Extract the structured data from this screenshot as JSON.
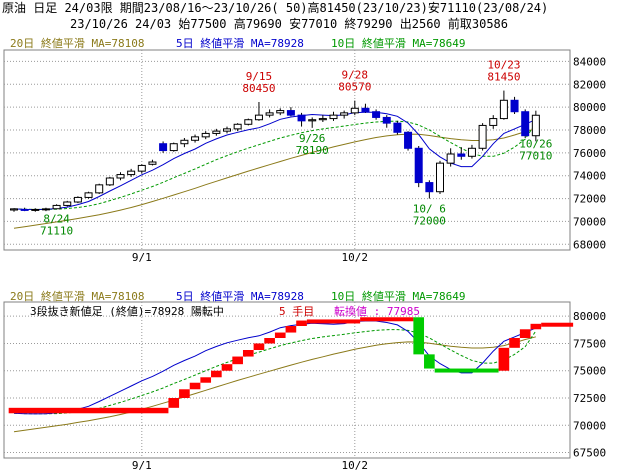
{
  "header": {
    "line1": "原油 日足 24/03限 期間23/08/16～23/10/26( 50)高81450(23/10/23)安71110(23/08/24)",
    "line2": "23/10/26 24/03 始77500 高79690 安77010 終79290 出2560 前取30586"
  },
  "colors": {
    "ma20": "#8b7a1a",
    "ma5": "#0000cc",
    "ma10": "#009900",
    "up_fill": "#ffffff",
    "down_fill": "#0000cc",
    "brick_up": "#ff0000",
    "brick_down": "#00cc00",
    "annotation_high": "#cc0000",
    "annotation_low": "#008800",
    "switch_text": "#cc00cc"
  },
  "chart_data": [
    {
      "type": "candlestick",
      "legend": {
        "ma20": "20日 終値平滑 MA=78108",
        "ma5": "5日 終値平滑 MA=78928",
        "ma10": "10日 終値平滑 MA=78649"
      },
      "y_ticks": [
        84000,
        82000,
        80000,
        78000,
        76000,
        74000,
        72000,
        70000,
        68000
      ],
      "ylim": [
        67500,
        85000
      ],
      "x_ticks": [
        {
          "label": "9/1",
          "index": 12
        },
        {
          "label": "10/2",
          "index": 32
        }
      ],
      "n": 50,
      "candles": [
        [
          71000,
          71150,
          70850,
          71100
        ],
        [
          71050,
          71200,
          70900,
          71000
        ],
        [
          71000,
          71150,
          70850,
          71050
        ],
        [
          71050,
          71200,
          70900,
          71100
        ],
        [
          71110,
          71500,
          71110,
          71400
        ],
        [
          71400,
          71800,
          71300,
          71700
        ],
        [
          71700,
          72200,
          71600,
          72100
        ],
        [
          72100,
          72600,
          72000,
          72500
        ],
        [
          72500,
          73300,
          72400,
          73200
        ],
        [
          73200,
          73900,
          73100,
          73800
        ],
        [
          73800,
          74300,
          73600,
          74100
        ],
        [
          74100,
          74600,
          73900,
          74400
        ],
        [
          74400,
          75000,
          74200,
          74900
        ],
        [
          75000,
          75400,
          74900,
          75200
        ],
        [
          76800,
          77000,
          76000,
          76200
        ],
        [
          76200,
          76900,
          76100,
          76800
        ],
        [
          76800,
          77300,
          76500,
          77100
        ],
        [
          77100,
          77600,
          76900,
          77400
        ],
        [
          77400,
          77900,
          77200,
          77700
        ],
        [
          77700,
          78100,
          77500,
          77900
        ],
        [
          77900,
          78300,
          77700,
          78100
        ],
        [
          78100,
          78600,
          77900,
          78500
        ],
        [
          78500,
          79000,
          78400,
          78900
        ],
        [
          78900,
          80450,
          78800,
          79300
        ],
        [
          79300,
          79800,
          79100,
          79500
        ],
        [
          79500,
          79900,
          79300,
          79700
        ],
        [
          79700,
          80000,
          79200,
          79300
        ],
        [
          79300,
          79500,
          78300,
          78800
        ],
        [
          78800,
          79100,
          78190,
          78900
        ],
        [
          78900,
          79300,
          78700,
          79000
        ],
        [
          79000,
          79600,
          78800,
          79300
        ],
        [
          79300,
          79700,
          79000,
          79500
        ],
        [
          79500,
          80570,
          79300,
          79900
        ],
        [
          79900,
          80300,
          79500,
          79600
        ],
        [
          79600,
          79800,
          78900,
          79100
        ],
        [
          79100,
          79300,
          78200,
          78600
        ],
        [
          78600,
          78800,
          77600,
          77800
        ],
        [
          77800,
          77900,
          76200,
          76400
        ],
        [
          76400,
          76600,
          73000,
          73400
        ],
        [
          73400,
          73600,
          72000,
          72600
        ],
        [
          72600,
          75300,
          72400,
          75100
        ],
        [
          75100,
          76400,
          74800,
          75900
        ],
        [
          75900,
          76500,
          75400,
          75700
        ],
        [
          75700,
          76700,
          75500,
          76400
        ],
        [
          76400,
          78600,
          76200,
          78400
        ],
        [
          78400,
          79300,
          78100,
          79000
        ],
        [
          79000,
          81450,
          78900,
          80600
        ],
        [
          80600,
          80900,
          79400,
          79600
        ],
        [
          79600,
          79800,
          77300,
          77500
        ],
        [
          77500,
          79690,
          77010,
          79290
        ]
      ],
      "ma5": [
        71100,
        71050,
        71040,
        71050,
        71130,
        71250,
        71470,
        71740,
        72180,
        72660,
        73120,
        73600,
        74080,
        74480,
        74960,
        75500,
        75940,
        76340,
        76840,
        77220,
        77560,
        77800,
        78020,
        78200,
        78540,
        78940,
        79140,
        79260,
        79360,
        79300,
        79260,
        79320,
        79520,
        79560,
        79560,
        79420,
        79200,
        78600,
        77600,
        76350,
        75650,
        75100,
        74800,
        74800,
        75700,
        76800,
        77700,
        78100,
        78500,
        78930
      ],
      "ma10": [
        71100,
        71070,
        71050,
        71050,
        71070,
        71130,
        71220,
        71350,
        71550,
        71820,
        72100,
        72410,
        72730,
        73060,
        73420,
        73830,
        74200,
        74600,
        75000,
        75400,
        75760,
        76100,
        76420,
        76710,
        77010,
        77300,
        77540,
        77760,
        77950,
        78100,
        78220,
        78340,
        78480,
        78600,
        78700,
        78760,
        78770,
        78700,
        78440,
        78000,
        77450,
        76900,
        76400,
        75950,
        75700,
        75700,
        75970,
        76500,
        77200,
        78650
      ],
      "ma20": [
        69400,
        69540,
        69680,
        69820,
        69960,
        70100,
        70260,
        70420,
        70590,
        70780,
        70990,
        71220,
        71470,
        71740,
        72020,
        72310,
        72600,
        72900,
        73210,
        73510,
        73810,
        74110,
        74400,
        74680,
        74960,
        75240,
        75520,
        75780,
        76040,
        76280,
        76520,
        76740,
        76960,
        77160,
        77340,
        77480,
        77580,
        77640,
        77620,
        77520,
        77380,
        77250,
        77150,
        77080,
        77080,
        77150,
        77300,
        77560,
        77860,
        78110
      ],
      "annotations": [
        {
          "date": "9/15",
          "value": "80450",
          "kind": "high",
          "index": 23,
          "price": 80450
        },
        {
          "date": "9/28",
          "value": "80570",
          "kind": "high",
          "index": 32,
          "price": 80570
        },
        {
          "date": "10/23",
          "value": "81450",
          "kind": "high",
          "index": 46,
          "price": 81450
        },
        {
          "date": "8/24",
          "value": "71110",
          "kind": "low",
          "index": 4,
          "price": 71110
        },
        {
          "date": "9/26",
          "value": "78190",
          "kind": "low",
          "index": 28,
          "price": 78190
        },
        {
          "date": "10/ 6",
          "value": "72000",
          "kind": "low",
          "index": 39,
          "price": 72000
        },
        {
          "date": "10/26",
          "value": "77010",
          "kind": "low",
          "index": 49,
          "price": 77010
        }
      ]
    },
    {
      "type": "renko",
      "legend": {
        "ma20": "20日 終値平滑 MA=78108",
        "ma5": "5日 終値平滑 MA=78928",
        "ma10": "10日 終値平滑 MA=78649",
        "renko_info": "3段抜き新値足 (終値)=78928 陽転中",
        "count_label": "5 手目",
        "switch_label": "転換値 : 77985"
      },
      "y_ticks": [
        80000,
        77500,
        75000,
        72500,
        70000,
        67500
      ],
      "ylim": [
        67000,
        81300
      ],
      "x_ticks": [
        {
          "label": "9/1",
          "index": 12
        },
        {
          "label": "10/2",
          "index": 32
        }
      ],
      "bricks": [
        {
          "index": 0,
          "span": 15,
          "from": 71100,
          "to": 71600,
          "dir": "up"
        },
        {
          "index": 15,
          "span": 1,
          "from": 71600,
          "to": 72500,
          "dir": "up"
        },
        {
          "index": 16,
          "span": 1,
          "from": 72500,
          "to": 73300,
          "dir": "up"
        },
        {
          "index": 17,
          "span": 1,
          "from": 73300,
          "to": 73900,
          "dir": "up"
        },
        {
          "index": 18,
          "span": 1,
          "from": 73900,
          "to": 74400,
          "dir": "up"
        },
        {
          "index": 19,
          "span": 1,
          "from": 74400,
          "to": 75000,
          "dir": "up"
        },
        {
          "index": 20,
          "span": 1,
          "from": 75000,
          "to": 75600,
          "dir": "up"
        },
        {
          "index": 21,
          "span": 1,
          "from": 75600,
          "to": 76300,
          "dir": "up"
        },
        {
          "index": 22,
          "span": 1,
          "from": 76300,
          "to": 76900,
          "dir": "up"
        },
        {
          "index": 23,
          "span": 1,
          "from": 76900,
          "to": 77500,
          "dir": "up"
        },
        {
          "index": 24,
          "span": 1,
          "from": 77500,
          "to": 78000,
          "dir": "up"
        },
        {
          "index": 25,
          "span": 1,
          "from": 78000,
          "to": 78500,
          "dir": "up"
        },
        {
          "index": 26,
          "span": 1,
          "from": 78500,
          "to": 79100,
          "dir": "up"
        },
        {
          "index": 27,
          "span": 1,
          "from": 79100,
          "to": 79600,
          "dir": "up"
        },
        {
          "index": 28,
          "span": 5,
          "from": 79600,
          "to": 79700,
          "dir": "up"
        },
        {
          "index": 33,
          "span": 5,
          "from": 79700,
          "to": 79900,
          "dir": "up"
        },
        {
          "index": 38,
          "span": 1,
          "from": 79900,
          "to": 76500,
          "dir": "down"
        },
        {
          "index": 39,
          "span": 1,
          "from": 76500,
          "to": 75200,
          "dir": "down"
        },
        {
          "index": 40,
          "span": 6,
          "from": 75200,
          "to": 75000,
          "dir": "down"
        },
        {
          "index": 46,
          "span": 1,
          "from": 75000,
          "to": 77100,
          "dir": "up"
        },
        {
          "index": 47,
          "span": 1,
          "from": 77100,
          "to": 78000,
          "dir": "up"
        },
        {
          "index": 48,
          "span": 1,
          "from": 78000,
          "to": 78800,
          "dir": "up"
        },
        {
          "index": 49,
          "span": 1,
          "from": 78800,
          "to": 79300,
          "dir": "up"
        },
        {
          "index": 50,
          "span": 3,
          "from": 79300,
          "to": 79400,
          "dir": "up"
        }
      ]
    }
  ]
}
